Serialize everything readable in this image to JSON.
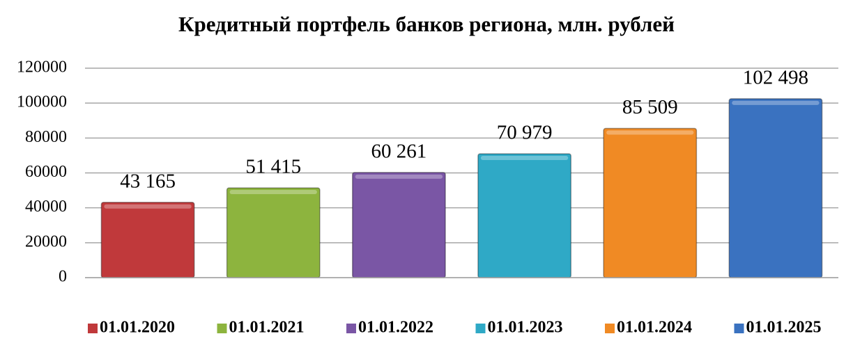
{
  "chart_data": {
    "type": "bar",
    "title": "Кредитный портфель банков региона, млн. рублей",
    "categories": [
      null
    ],
    "series": [
      {
        "name": "01.01.2020",
        "color": "#c0393b",
        "values": [
          43165
        ],
        "value_labels": [
          "43 165"
        ]
      },
      {
        "name": "01.01.2021",
        "color": "#8db43e",
        "values": [
          51415
        ],
        "value_labels": [
          "51 415"
        ]
      },
      {
        "name": "01.01.2022",
        "color": "#7a56a5",
        "values": [
          60261
        ],
        "value_labels": [
          "60 261"
        ]
      },
      {
        "name": "01.01.2023",
        "color": "#2fa9c6",
        "values": [
          70979
        ],
        "value_labels": [
          "70 979"
        ]
      },
      {
        "name": "01.01.2024",
        "color": "#f08a24",
        "values": [
          85509
        ],
        "value_labels": [
          "85 509"
        ]
      },
      {
        "name": "01.01.2025",
        "color": "#3a72c0",
        "values": [
          102498
        ],
        "value_labels": [
          "102 498"
        ]
      }
    ],
    "ylim": [
      0,
      120000
    ],
    "yticks": [
      0,
      20000,
      40000,
      60000,
      80000,
      100000,
      120000
    ],
    "grid": true,
    "legend": "bottom"
  }
}
